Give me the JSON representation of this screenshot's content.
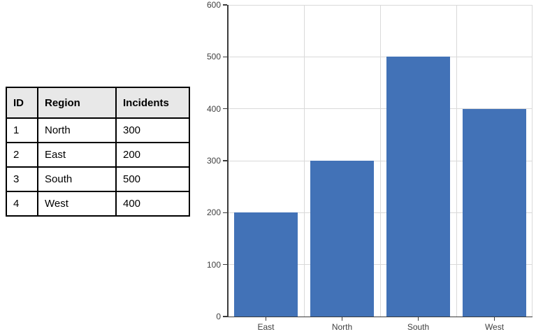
{
  "table": {
    "headers": [
      "ID",
      "Region",
      "Incidents"
    ],
    "rows": [
      {
        "id": "1",
        "region": "North",
        "incidents": "300"
      },
      {
        "id": "2",
        "region": "East",
        "incidents": "200"
      },
      {
        "id": "3",
        "region": "South",
        "incidents": "500"
      },
      {
        "id": "4",
        "region": "West",
        "incidents": "400"
      }
    ]
  },
  "chart_data": {
    "type": "bar",
    "categories": [
      "East",
      "North",
      "South",
      "West"
    ],
    "values": [
      200,
      300,
      500,
      400
    ],
    "title": "",
    "xlabel": "",
    "ylabel": "",
    "ylim": [
      0,
      600
    ],
    "ytick_step": 100,
    "yticks": [
      0,
      100,
      200,
      300,
      400,
      500,
      600
    ],
    "grid": true,
    "legend": false,
    "bar_color": "#4272B7",
    "gridline_color": "#D9D9D9",
    "axis_color": "#3B3B3B",
    "tick_label_color": "#404040",
    "table_header_bg": "#E8E8E8",
    "table_border_color": "#000000"
  }
}
